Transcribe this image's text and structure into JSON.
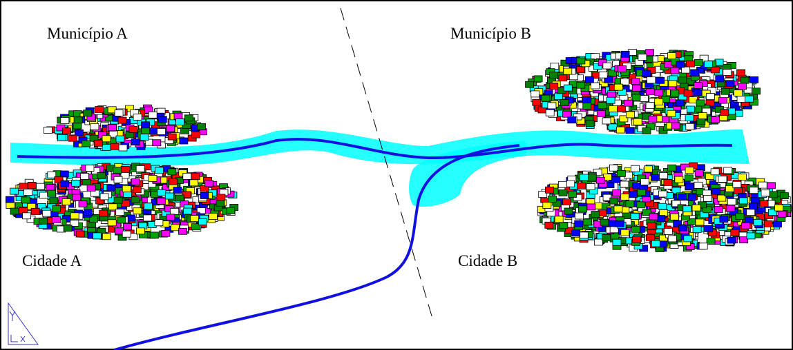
{
  "municipalities": [
    "Município A",
    "Município B"
  ],
  "cities": [
    "Cidade A",
    "Cidade B"
  ]
}
